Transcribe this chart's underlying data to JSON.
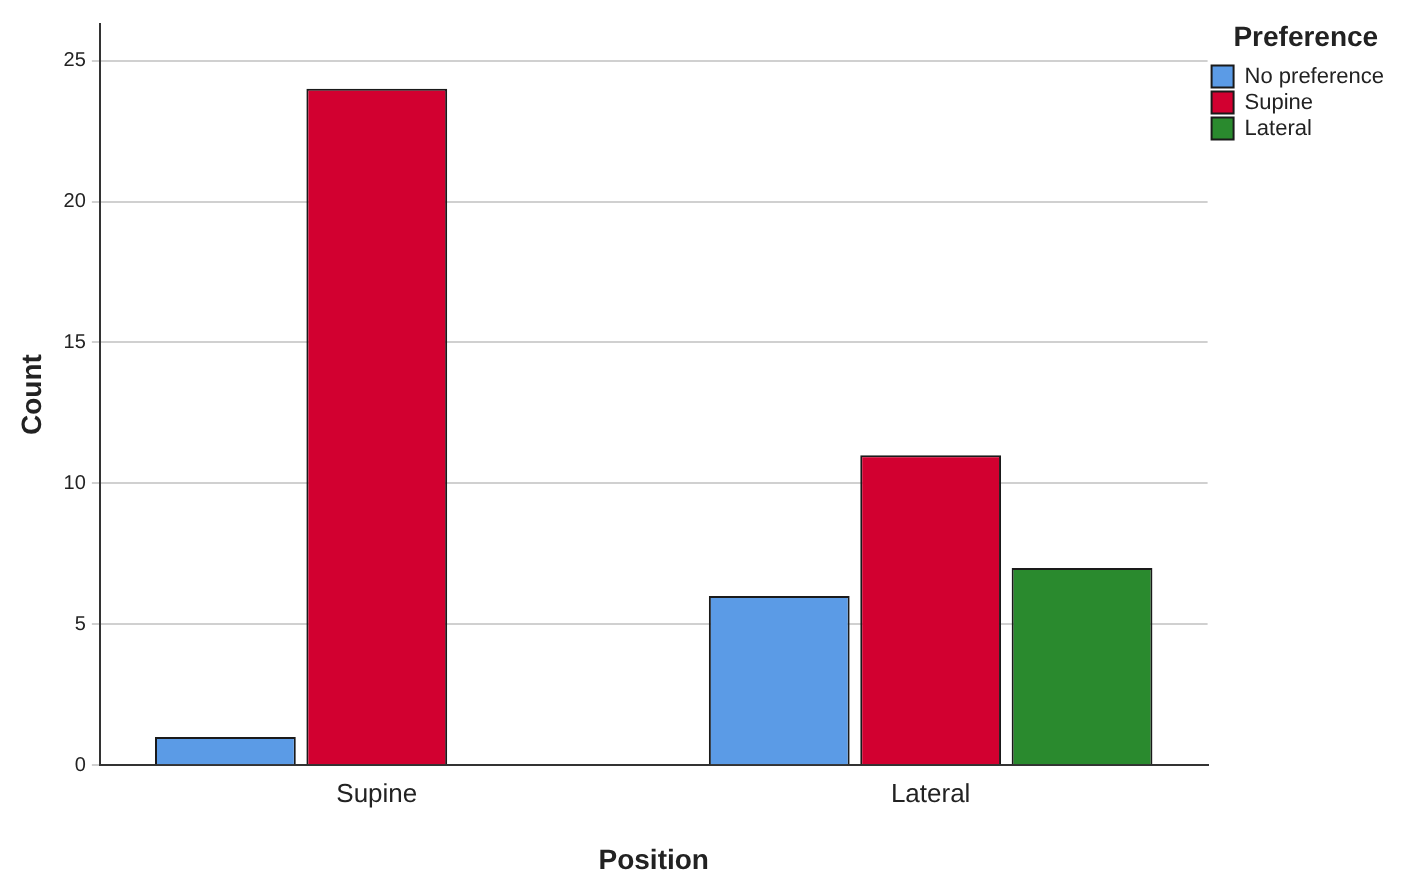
{
  "chart_data": {
    "type": "bar",
    "xlabel": "Position",
    "ylabel": "Count",
    "legend_title": "Preference",
    "categories": [
      "Supine",
      "Lateral"
    ],
    "series": [
      {
        "name": "No preference",
        "color": "#5b9be6",
        "values": [
          1,
          6
        ]
      },
      {
        "name": "Supine",
        "color": "#d20030",
        "values": [
          24,
          11
        ]
      },
      {
        "name": "Lateral",
        "color": "#2a8a2e",
        "values": [
          null,
          7
        ]
      }
    ],
    "ylim": [
      0,
      26.3
    ],
    "yticks": [
      0,
      5,
      10,
      15,
      20,
      25
    ],
    "grid": "y",
    "legend": "top right"
  }
}
